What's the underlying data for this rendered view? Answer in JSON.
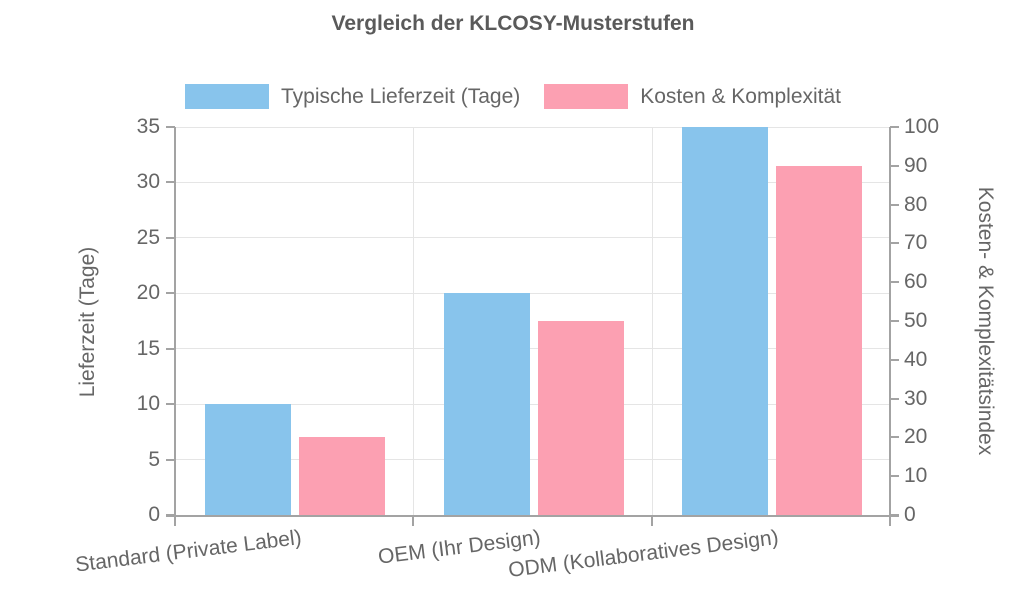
{
  "title": "Vergleich der KLCOSY-Musterstufen",
  "chart_data": {
    "type": "bar",
    "categories": [
      "Standard (Private Label)",
      "OEM (Ihr Design)",
      "ODM (Kollaboratives Design)"
    ],
    "series": [
      {
        "name": "Typische Lieferzeit (Tage)",
        "axis": "left",
        "color": "#88C4EC",
        "values": [
          10,
          20,
          35
        ]
      },
      {
        "name": "Kosten & Komplexität",
        "axis": "right",
        "color": "#FCA0B2",
        "values": [
          20,
          50,
          90
        ]
      }
    ],
    "left_axis": {
      "label": "Lieferzeit (Tage)",
      "min": 0,
      "max": 35,
      "step": 5,
      "ticks": [
        0,
        5,
        10,
        15,
        20,
        25,
        30,
        35
      ]
    },
    "right_axis": {
      "label": "Kosten- & Komplexitätsindex",
      "min": 0,
      "max": 100,
      "step": 10,
      "ticks": [
        0,
        10,
        20,
        30,
        40,
        50,
        60,
        70,
        80,
        90,
        100
      ]
    },
    "grid": true,
    "legend_position": "top",
    "colors": {
      "title_text": "#5a5a5a",
      "tick_text": "#666666",
      "gridline": "#e5e5e5",
      "axis_line": "#a3a3a3",
      "background": "#ffffff"
    }
  }
}
